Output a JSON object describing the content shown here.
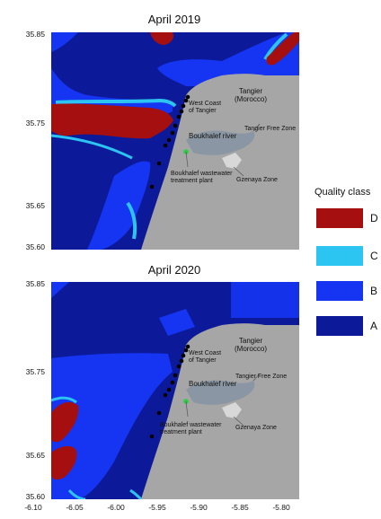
{
  "maps": [
    {
      "title": "April 2019",
      "y_ticks": [
        "35.85",
        "35.75",
        "35.65",
        "35.60"
      ],
      "labels": {
        "city": "Tangier\n(Morocco)",
        "west_coast": "West Coast\nof Tangier",
        "river": "Boukhalef river",
        "free_zone": "Tangier Free Zone",
        "plant": "Boukhalef wastewater\ntreatment plant",
        "gzenaya": "Gzenaya Zone"
      }
    },
    {
      "title": "April 2020",
      "y_ticks": [
        "35.85",
        "35.75",
        "35.65",
        "35.60"
      ],
      "labels": {
        "city": "Tangier\n(Morocco)",
        "west_coast": "West Coast\nof Tangier",
        "river": "Boukhalef river",
        "free_zone": "Tangier Free Zone",
        "plant": "Boukhalef wastewater\ntreatment plant",
        "gzenaya": "Gzenaya Zone"
      }
    }
  ],
  "x_ticks": [
    "-6.10",
    "-6.05",
    "-6.00",
    "-5.95",
    "-5.90",
    "-5.85",
    "-5.80"
  ],
  "legend": {
    "title": "Quality class",
    "items": [
      {
        "label": "D",
        "color": "#a50f0f"
      },
      {
        "label": "C",
        "color": "#2cc4f0"
      },
      {
        "label": "B",
        "color": "#1535f2"
      },
      {
        "label": "A",
        "color": "#0c1a9a"
      }
    ]
  },
  "colors": {
    "land": "#a6a6a6",
    "land_dark": "#8a96a3",
    "green_marker": "#2ecc40",
    "points": "#000000"
  }
}
